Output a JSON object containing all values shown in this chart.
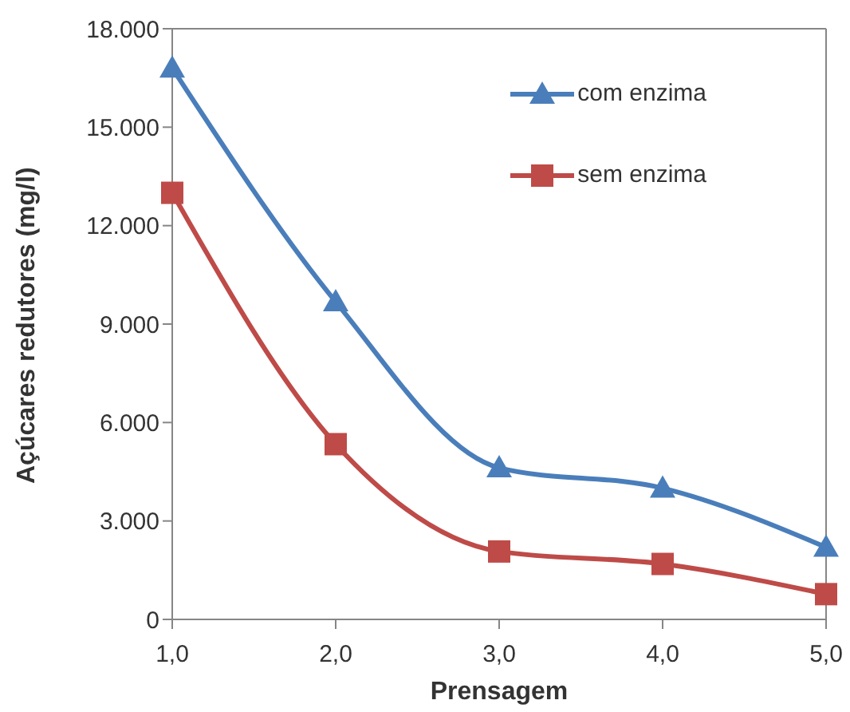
{
  "chart_data": {
    "type": "line",
    "xlabel": "Prensagem",
    "ylabel": "Açúcares redutores (mg/l)",
    "x": [
      1,
      2,
      3,
      4,
      5
    ],
    "series": [
      {
        "name": "com enzima",
        "color": "#4a7ebb",
        "marker": "triangle",
        "values": [
          16800,
          9680,
          4620,
          4000,
          2200
        ]
      },
      {
        "name": "sem enzima",
        "color": "#be4b48",
        "marker": "square",
        "values": [
          13000,
          5340,
          2070,
          1690,
          770
        ]
      }
    ],
    "xlim": [
      1,
      5
    ],
    "xticks": [
      {
        "value": 1,
        "label": "1,0"
      },
      {
        "value": 2,
        "label": "2,0"
      },
      {
        "value": 3,
        "label": "3,0"
      },
      {
        "value": 4,
        "label": "4,0"
      },
      {
        "value": 5,
        "label": "5,0"
      }
    ],
    "ylim": [
      0,
      18000
    ],
    "yticks": [
      {
        "value": 0,
        "label": "0"
      },
      {
        "value": 3000,
        "label": "3.000"
      },
      {
        "value": 6000,
        "label": "6.000"
      },
      {
        "value": 9000,
        "label": "9.000"
      },
      {
        "value": 12000,
        "label": "12.000"
      },
      {
        "value": 15000,
        "label": "15.000"
      },
      {
        "value": 18000,
        "label": "18.000"
      }
    ],
    "legend": "top right",
    "grid": false,
    "line_style": "solid"
  }
}
